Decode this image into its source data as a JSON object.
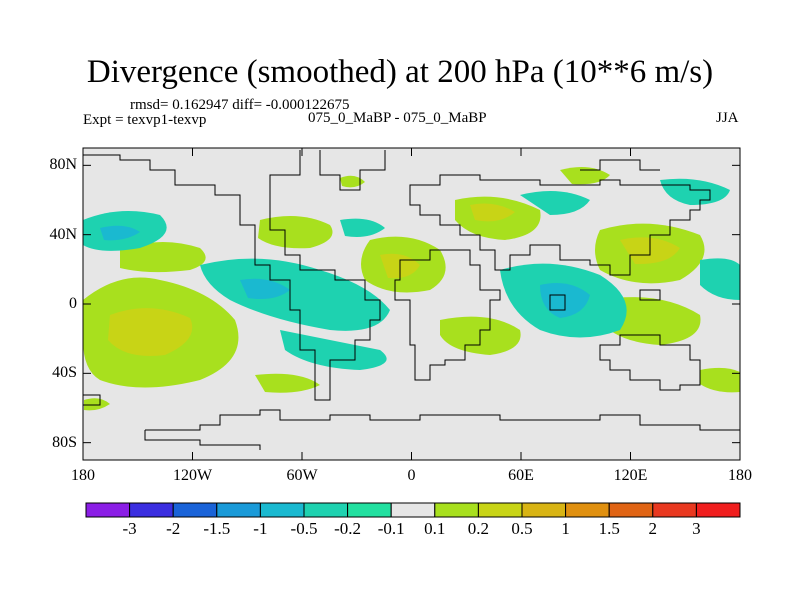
{
  "title": "Divergence (smoothed) at 200 hPa (10**6 m/s)",
  "stats": "rmsd= 0.162947 diff= -0.000122675",
  "expt": "Expt = texvp1-texvp",
  "case": "075_0_MaBP - 075_0_MaBP",
  "season": "JJA",
  "map": {
    "lon_range": [
      -180,
      180
    ],
    "lat_range": [
      -90,
      90
    ],
    "x_ticks": [
      {
        "label": "180",
        "value": -180
      },
      {
        "label": "120W",
        "value": -120
      },
      {
        "label": "60W",
        "value": -60
      },
      {
        "label": "0",
        "value": 0
      },
      {
        "label": "60E",
        "value": 60
      },
      {
        "label": "120E",
        "value": 120
      },
      {
        "label": "180",
        "value": 180
      }
    ],
    "y_ticks": [
      {
        "label": "80N",
        "value": 80
      },
      {
        "label": "40N",
        "value": 40
      },
      {
        "label": "0",
        "value": 0
      },
      {
        "label": "40S",
        "value": -40
      },
      {
        "label": "80S",
        "value": -80
      }
    ]
  },
  "colorbar": {
    "labels": [
      "-3",
      "-2",
      "-1.5",
      "-1",
      "-0.5",
      "-0.2",
      "-0.1",
      "0.1",
      "0.2",
      "0.5",
      "1",
      "1.5",
      "2",
      "3"
    ],
    "colors": [
      "#8b1ee6",
      "#3b2ee0",
      "#1a63d8",
      "#1a9ad8",
      "#1ab9d0",
      "#1ed2b0",
      "#22e0a0",
      "#e6e6e6",
      "#a8e01e",
      "#c8d416",
      "#d8b414",
      "#e09010",
      "#e06414",
      "#e83820",
      "#f01e1e"
    ]
  }
}
